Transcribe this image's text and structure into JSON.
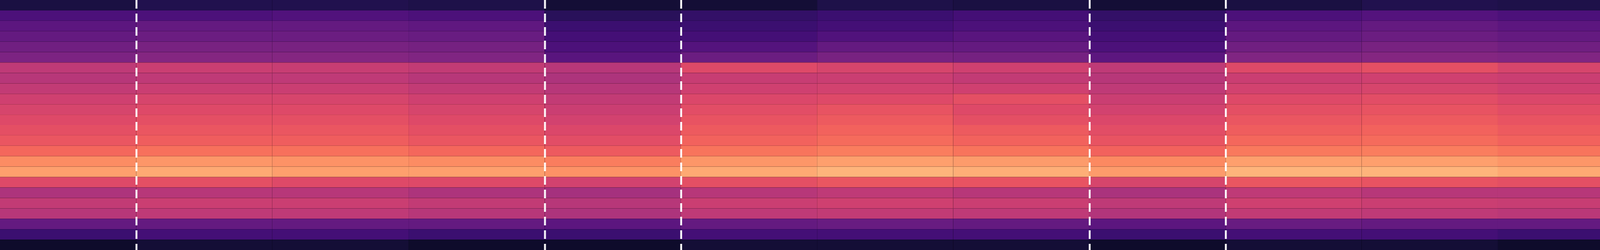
{
  "chart_data": {
    "type": "heatmap",
    "color": "magma",
    "tick_labels": false,
    "grid": false,
    "xlim": [
      0,
      47
    ],
    "ylim": [
      0,
      24
    ],
    "zlim": [
      0,
      1
    ],
    "x_edges": [
      0,
      4,
      8,
      12,
      16,
      20,
      24,
      28,
      32,
      36,
      40,
      44,
      47
    ],
    "y_edges": [
      0,
      1,
      2,
      3,
      4,
      5,
      6,
      7,
      8,
      9,
      10,
      11,
      12,
      13,
      14,
      15,
      16,
      17,
      18,
      19,
      20,
      21,
      22,
      23,
      24
    ],
    "vlines": [
      4,
      16,
      20,
      32,
      36
    ],
    "vline_color": "#ffffff",
    "line_style": "dashed",
    "cells": [
      [
        0.12,
        0.14,
        0.14,
        0.13,
        0.1,
        0.1,
        0.13,
        0.12,
        0.1,
        0.12,
        0.14,
        0.13
      ],
      [
        0.24,
        0.24,
        0.25,
        0.24,
        0.16,
        0.18,
        0.2,
        0.22,
        0.18,
        0.24,
        0.26,
        0.24
      ],
      [
        0.28,
        0.3,
        0.3,
        0.29,
        0.2,
        0.2,
        0.22,
        0.24,
        0.2,
        0.28,
        0.3,
        0.28
      ],
      [
        0.3,
        0.32,
        0.32,
        0.31,
        0.22,
        0.22,
        0.25,
        0.27,
        0.22,
        0.3,
        0.32,
        0.3
      ],
      [
        0.33,
        0.35,
        0.35,
        0.34,
        0.24,
        0.26,
        0.3,
        0.3,
        0.24,
        0.33,
        0.35,
        0.33
      ],
      [
        0.36,
        0.38,
        0.38,
        0.37,
        0.27,
        0.32,
        0.35,
        0.34,
        0.28,
        0.37,
        0.38,
        0.37
      ],
      [
        0.52,
        0.55,
        0.54,
        0.53,
        0.5,
        0.6,
        0.58,
        0.56,
        0.52,
        0.6,
        0.62,
        0.58
      ],
      [
        0.5,
        0.52,
        0.52,
        0.5,
        0.48,
        0.54,
        0.55,
        0.53,
        0.5,
        0.55,
        0.56,
        0.55
      ],
      [
        0.53,
        0.55,
        0.55,
        0.53,
        0.5,
        0.56,
        0.57,
        0.56,
        0.52,
        0.57,
        0.58,
        0.56
      ],
      [
        0.56,
        0.58,
        0.58,
        0.56,
        0.53,
        0.59,
        0.6,
        0.62,
        0.55,
        0.6,
        0.61,
        0.59
      ],
      [
        0.58,
        0.6,
        0.6,
        0.58,
        0.55,
        0.61,
        0.63,
        0.6,
        0.57,
        0.62,
        0.63,
        0.61
      ],
      [
        0.6,
        0.62,
        0.62,
        0.6,
        0.57,
        0.63,
        0.65,
        0.62,
        0.59,
        0.64,
        0.65,
        0.63
      ],
      [
        0.62,
        0.64,
        0.64,
        0.62,
        0.59,
        0.65,
        0.67,
        0.65,
        0.61,
        0.66,
        0.67,
        0.65
      ],
      [
        0.64,
        0.66,
        0.66,
        0.64,
        0.61,
        0.67,
        0.69,
        0.67,
        0.63,
        0.68,
        0.69,
        0.67
      ],
      [
        0.68,
        0.7,
        0.7,
        0.68,
        0.65,
        0.71,
        0.73,
        0.71,
        0.67,
        0.72,
        0.73,
        0.71
      ],
      [
        0.76,
        0.78,
        0.77,
        0.76,
        0.73,
        0.78,
        0.8,
        0.79,
        0.75,
        0.8,
        0.8,
        0.78
      ],
      [
        0.8,
        0.82,
        0.8,
        0.8,
        0.77,
        0.82,
        0.84,
        0.83,
        0.79,
        0.84,
        0.84,
        0.82
      ],
      [
        0.6,
        0.62,
        0.6,
        0.6,
        0.57,
        0.62,
        0.64,
        0.63,
        0.58,
        0.64,
        0.63,
        0.62
      ],
      [
        0.48,
        0.5,
        0.5,
        0.48,
        0.46,
        0.5,
        0.52,
        0.5,
        0.47,
        0.52,
        0.5,
        0.5
      ],
      [
        0.53,
        0.55,
        0.55,
        0.53,
        0.5,
        0.55,
        0.56,
        0.55,
        0.52,
        0.56,
        0.55,
        0.54
      ],
      [
        0.5,
        0.52,
        0.52,
        0.5,
        0.48,
        0.52,
        0.53,
        0.52,
        0.49,
        0.53,
        0.52,
        0.51
      ],
      [
        0.3,
        0.3,
        0.3,
        0.3,
        0.28,
        0.3,
        0.31,
        0.3,
        0.28,
        0.31,
        0.3,
        0.3
      ],
      [
        0.2,
        0.22,
        0.22,
        0.2,
        0.2,
        0.22,
        0.22,
        0.22,
        0.2,
        0.22,
        0.22,
        0.2
      ],
      [
        0.08,
        0.1,
        0.1,
        0.08,
        0.08,
        0.1,
        0.1,
        0.1,
        0.08,
        0.1,
        0.1,
        0.08
      ]
    ]
  }
}
